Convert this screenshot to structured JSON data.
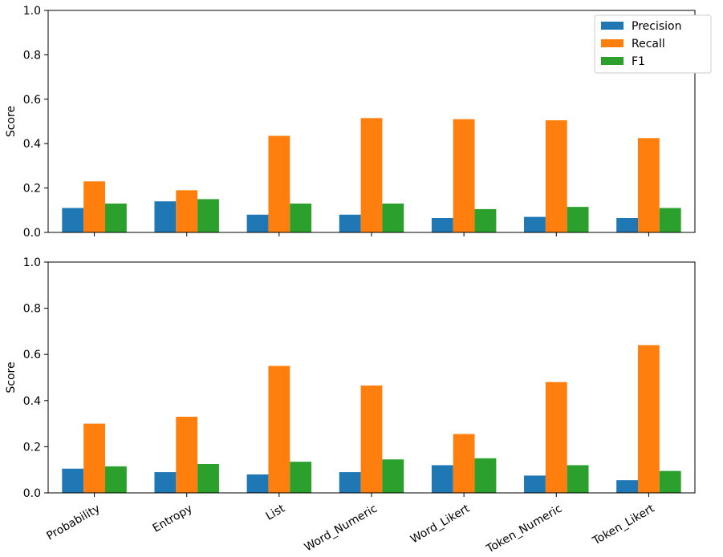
{
  "chart_data": [
    {
      "type": "bar",
      "categories": [
        "Probability",
        "Entropy",
        "List",
        "Word_Numeric",
        "Word_Likert",
        "Token_Numeric",
        "Token_Likert"
      ],
      "series": [
        {
          "name": "Precision",
          "color": "#1f77b4",
          "values": [
            0.11,
            0.14,
            0.08,
            0.08,
            0.065,
            0.07,
            0.065
          ]
        },
        {
          "name": "Recall",
          "color": "#ff7f0e",
          "values": [
            0.23,
            0.19,
            0.435,
            0.515,
            0.51,
            0.505,
            0.425
          ]
        },
        {
          "name": "F1",
          "color": "#2ca02c",
          "values": [
            0.13,
            0.15,
            0.13,
            0.13,
            0.105,
            0.115,
            0.11
          ]
        }
      ],
      "ylabel": "Score",
      "ylim": [
        0,
        1.0
      ],
      "yticks": [
        "0.0",
        "0.2",
        "0.4",
        "0.6",
        "0.8",
        "1.0"
      ],
      "show_xticklabels": false,
      "legend": "top-right"
    },
    {
      "type": "bar",
      "categories": [
        "Probability",
        "Entropy",
        "List",
        "Word_Numeric",
        "Word_Likert",
        "Token_Numeric",
        "Token_Likert"
      ],
      "series": [
        {
          "name": "Precision",
          "color": "#1f77b4",
          "values": [
            0.105,
            0.09,
            0.08,
            0.09,
            0.12,
            0.075,
            0.055
          ]
        },
        {
          "name": "Recall",
          "color": "#ff7f0e",
          "values": [
            0.3,
            0.33,
            0.55,
            0.465,
            0.255,
            0.48,
            0.64
          ]
        },
        {
          "name": "F1",
          "color": "#2ca02c",
          "values": [
            0.115,
            0.125,
            0.135,
            0.145,
            0.15,
            0.12,
            0.095
          ]
        }
      ],
      "ylabel": "Score",
      "ylim": [
        0,
        1.0
      ],
      "yticks": [
        "0.0",
        "0.2",
        "0.4",
        "0.6",
        "0.8",
        "1.0"
      ],
      "show_xticklabels": true,
      "legend": "none"
    }
  ]
}
